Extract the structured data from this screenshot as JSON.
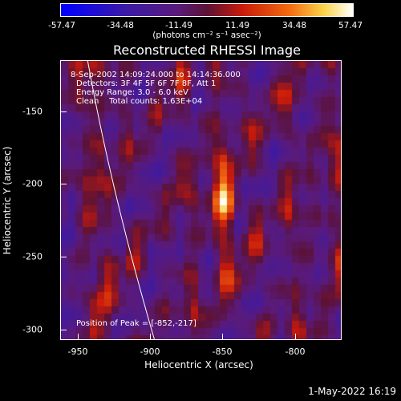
{
  "colorbar": {
    "labels": [
      "-57.47",
      "-34.48",
      "-11.49",
      "11.49",
      "34.48",
      "57.47"
    ],
    "units": "(photons cm⁻² s⁻¹ asec⁻²)"
  },
  "title": "Reconstructed RHESSI Image",
  "annotations": {
    "line1": "8-Sep-2002 14:09:24.000 to 14:14:36.000",
    "line2": "Detectors: 3F 4F 5F 6F 7F 8F, Att 1",
    "line3": "Energy Range: 3.0 - 6.0 keV",
    "line4": "Clean    Total counts: 1.63E+04",
    "peak": "Position of Peak = [-852,-217]"
  },
  "axes": {
    "xlabel": "Heliocentric X (arcsec)",
    "ylabel": "Heliocentric Y (arcsec)",
    "xticks": [
      "-950",
      "-900",
      "-850",
      "-800"
    ],
    "yticks": [
      "-150",
      "-200",
      "-250",
      "-300"
    ]
  },
  "timestamp": "1-May-2022 16:19",
  "chart_data": {
    "type": "heatmap",
    "title": "Reconstructed RHESSI Image",
    "xlabel": "Heliocentric X (arcsec)",
    "ylabel": "Heliocentric Y (arcsec)",
    "xlim": [
      -965,
      -770
    ],
    "ylim": [
      -310,
      -117
    ],
    "zlim": [
      -57.47,
      57.47
    ],
    "colormap": "blue-purple-red-yellow-white",
    "peak": [
      -852,
      -217
    ],
    "ridges_x": [
      -947,
      -935,
      -916,
      -894,
      -876,
      -852,
      -830,
      -806,
      -790,
      -772
    ],
    "ridge_amplitudes": [
      0.65,
      0.75,
      0.55,
      0.4,
      0.75,
      1.0,
      0.7,
      0.75,
      0.35,
      0.9
    ]
  }
}
